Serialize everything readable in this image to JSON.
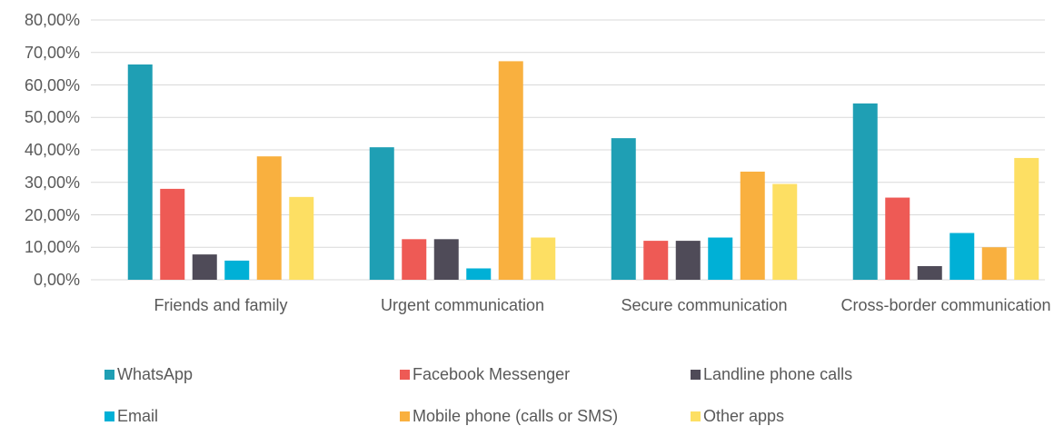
{
  "chart_data": {
    "type": "bar",
    "categories": [
      "Friends and family",
      "Urgent communication",
      "Secure communication",
      "Cross-border communication"
    ],
    "series": [
      {
        "name": "WhatsApp",
        "color": "#1f9fb4",
        "values": [
          66.3,
          40.8,
          43.6,
          54.3
        ]
      },
      {
        "name": "Facebook Messenger",
        "color": "#ee5a55",
        "values": [
          28.0,
          12.5,
          12.0,
          25.3
        ]
      },
      {
        "name": "Landline phone calls",
        "color": "#4f4b58",
        "values": [
          7.8,
          12.5,
          12.0,
          4.2
        ]
      },
      {
        "name": "Email",
        "color": "#00b0d6",
        "values": [
          5.9,
          3.5,
          13.0,
          14.4
        ]
      },
      {
        "name": "Mobile phone (calls or SMS)",
        "color": "#f9b03f",
        "values": [
          38.0,
          67.3,
          33.3,
          10.0
        ]
      },
      {
        "name": "Other apps",
        "color": "#fddf63",
        "values": [
          25.5,
          13.0,
          29.5,
          37.5
        ]
      }
    ],
    "ylim": [
      0,
      80
    ],
    "yticks": [
      {
        "value": 0,
        "label": "0,00%"
      },
      {
        "value": 10,
        "label": "10,00%"
      },
      {
        "value": 20,
        "label": "20,00%"
      },
      {
        "value": 30,
        "label": "30,00%"
      },
      {
        "value": 40,
        "label": "40,00%"
      },
      {
        "value": 50,
        "label": "50,00%"
      },
      {
        "value": 60,
        "label": "60,00%"
      },
      {
        "value": 70,
        "label": "70,00%"
      },
      {
        "value": 80,
        "label": "80,00%"
      }
    ],
    "grid": true,
    "legend": "bottom"
  }
}
